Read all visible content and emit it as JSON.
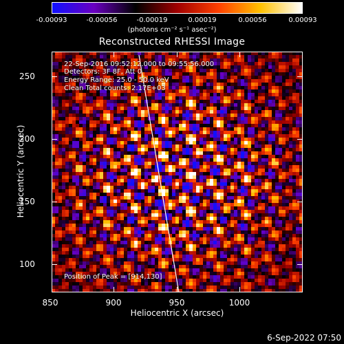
{
  "colorbar": {
    "ticks": [
      "-0.00093",
      "-0.00056",
      "-0.00019",
      "0.00019",
      "0.00056",
      "0.00093"
    ],
    "units": "(photons cm⁻² s⁻¹ asec⁻²)",
    "colors": [
      "#1010ff",
      "#6a00c0",
      "#000000",
      "#a00000",
      "#ff4000",
      "#ffc000",
      "#ffffff"
    ]
  },
  "title": "Reconstructed RHESSI Image",
  "info": {
    "time": "22-Sep-2016 09:52:12.000 to 09:55:56.000",
    "detectors": "Detectors: 3F 8F, Att 0",
    "energy": "Energy Range: 25.0 - 50.0 keV",
    "clean": "Clean     Total counts: 2.17E+03",
    "peak": "Position of Peak = [914,130]"
  },
  "axes": {
    "xlabel": "Heliocentric X (arcsec)",
    "ylabel": "Heliocentric Y (arcsec)",
    "xticks": [
      "850",
      "900",
      "950",
      "1000"
    ],
    "yticks": [
      "100",
      "150",
      "200",
      "250"
    ]
  },
  "footer": "6-Sep-2022 07:50"
}
